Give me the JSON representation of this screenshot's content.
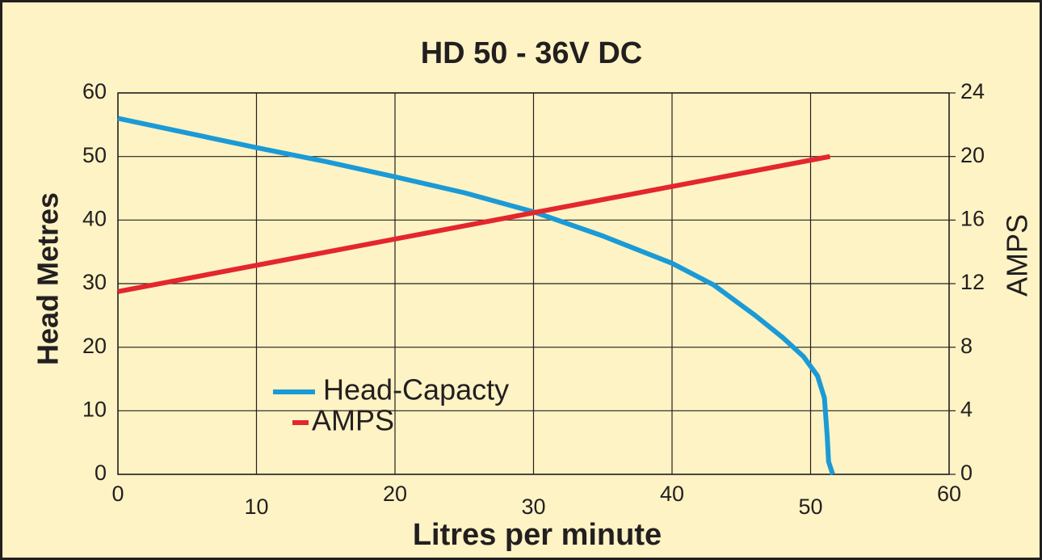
{
  "chart_data": {
    "type": "line",
    "title": "HD 50 - 36V DC",
    "xlabel": "Litres per minute",
    "ylabel": "Head Metres",
    "y2label": "AMPS",
    "xlim": [
      0,
      60
    ],
    "xticks": [
      0,
      10,
      20,
      30,
      40,
      50,
      60
    ],
    "ylim": [
      0,
      60
    ],
    "yticks": [
      0,
      10,
      20,
      30,
      40,
      50,
      60
    ],
    "y2lim": [
      0,
      24
    ],
    "y2ticks": [
      0,
      4,
      8,
      12,
      16,
      20,
      24
    ],
    "grid": true,
    "series": [
      {
        "name": "Head-Capacty",
        "color": "#1b9ad6",
        "x": [
          0,
          5,
          10,
          15,
          20,
          25,
          30,
          35,
          40,
          43,
          46,
          48,
          49.5,
          50.5,
          51,
          51.2,
          51.3,
          51.6
        ],
        "values": [
          56,
          53.7,
          51.4,
          49.2,
          46.8,
          44.3,
          41.3,
          37.5,
          33.2,
          29.8,
          25,
          21.5,
          18.5,
          15.5,
          12,
          6,
          2,
          0
        ]
      },
      {
        "name": "AMPS",
        "color": "#e4262d",
        "axis": "y2",
        "x": [
          0,
          51.4
        ],
        "values": [
          11.5,
          20
        ]
      }
    ]
  }
}
